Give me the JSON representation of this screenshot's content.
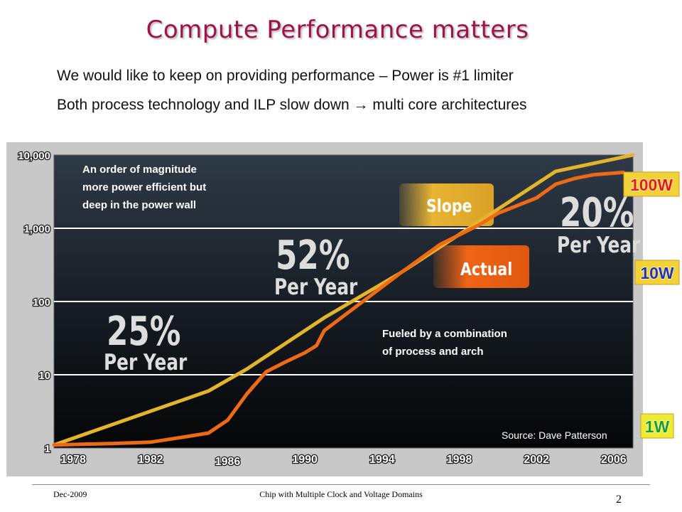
{
  "slide": {
    "title": "Compute Performance matters",
    "bullets": [
      "We would like to keep on providing performance – Power is #1 limiter",
      "Both process technology and ILP slow down → multi core architectures"
    ]
  },
  "chart_data": {
    "type": "line",
    "y_scale": "log",
    "ylim": [
      1,
      10000
    ],
    "xlim": [
      1977,
      2007
    ],
    "grid": true,
    "y_ticks": [
      "1",
      "10",
      "100",
      "1,000",
      "10,000"
    ],
    "x_ticks": [
      "1978",
      "1982",
      "1986",
      "1990",
      "1994",
      "1998",
      "2002",
      "2006"
    ],
    "series": [
      {
        "name": "Slope",
        "color": "#e3b42c",
        "x": [
          1977,
          1985,
          1987,
          1991,
          1995,
          2003,
          2007
        ],
        "y": [
          1.1,
          6,
          12,
          60,
          250,
          6000,
          10000
        ]
      },
      {
        "name": "Actual",
        "color": "#ee6a17",
        "x": [
          1977,
          1980,
          1982,
          1984,
          1985,
          1986,
          1987,
          1988,
          1989,
          1990,
          1990.6,
          1991,
          1993,
          1995,
          1997,
          1999,
          2000,
          2002,
          2003,
          2004,
          2005,
          2006.5
        ],
        "y": [
          1.1,
          1.15,
          1.2,
          1.45,
          1.6,
          2.4,
          5.5,
          11,
          15,
          20,
          25,
          40,
          100,
          250,
          600,
          1100,
          1600,
          2600,
          4000,
          4800,
          5400,
          5800
        ]
      }
    ],
    "power_labels": [
      {
        "text": "100W",
        "at_y": 4000
      },
      {
        "text": "10W",
        "at_y": 250
      },
      {
        "text": "1W",
        "at_y": 2
      }
    ],
    "annotations": {
      "top_note": [
        "An order of magnitude",
        "more power efficient but",
        "deep in the power wall"
      ],
      "rate_52_pct": "52%",
      "rate_52_unit": "Per Year",
      "rate_25_pct": "25%",
      "rate_25_unit": "Per Year",
      "rate_20_pct": "20%",
      "rate_20_unit": "Per Year",
      "slope_label": "Slope",
      "actual_label": "Actual",
      "fuel_note": [
        "Fueled by a combination",
        "of process and arch"
      ],
      "source": "Source: Dave Patterson"
    }
  },
  "footer": {
    "date": "Dec-2009",
    "center": "Chip with Multiple Clock and Voltage Domains",
    "page": "2"
  }
}
